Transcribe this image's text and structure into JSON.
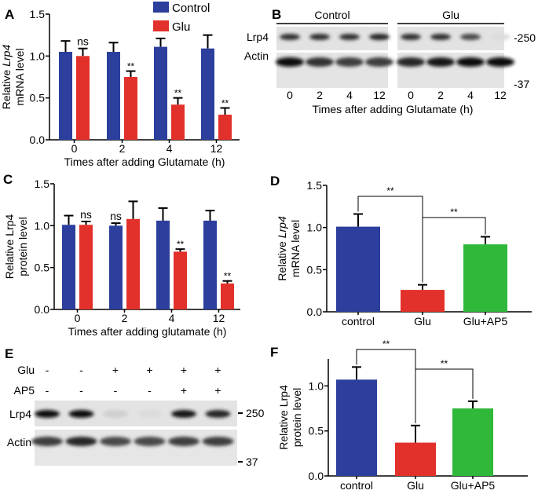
{
  "colors": {
    "control": "#2c3f9c",
    "glu": "#e2312a",
    "ap5": "#2fb83a"
  },
  "chart_data": [
    {
      "panel": "A",
      "type": "bar",
      "title": "",
      "ylabel_pre": "Relative ",
      "ylabel_italic": "Lrp4",
      "ylabel_line2": "mRNA level",
      "xlabel": "Times after adding Glutamate (h)",
      "categories": [
        "0",
        "2",
        "4",
        "12"
      ],
      "yticks": [
        "0.0",
        "0.5",
        "1.0",
        "1.5"
      ],
      "ylim": [
        0,
        1.5
      ],
      "legend": {
        "placement": "top",
        "entries": [
          "Control",
          "Glu"
        ]
      },
      "series": [
        {
          "name": "Control",
          "values": [
            1.05,
            1.05,
            1.11,
            1.09
          ],
          "errors": [
            0.13,
            0.11,
            0.1,
            0.16
          ]
        },
        {
          "name": "Glu",
          "values": [
            1.0,
            0.75,
            0.42,
            0.3
          ],
          "errors": [
            0.09,
            0.07,
            0.08,
            0.08
          ]
        }
      ],
      "annotations": [
        "ns",
        "**",
        "**",
        "**"
      ]
    },
    {
      "panel": "C",
      "type": "bar",
      "ylabel_line1": "Relative Lrp4",
      "ylabel_line2": "protein level",
      "xlabel": "Times after adding glutamate (h)",
      "categories": [
        "0",
        "2",
        "4",
        "12"
      ],
      "yticks": [
        "0.0",
        "0.5",
        "1.0",
        "1.5"
      ],
      "ylim": [
        0,
        1.5
      ],
      "series": [
        {
          "name": "Control",
          "values": [
            1.01,
            1.0,
            1.06,
            1.06
          ],
          "errors": [
            0.11,
            0.03,
            0.15,
            0.12
          ]
        },
        {
          "name": "Glu",
          "values": [
            1.01,
            1.08,
            0.69,
            0.31
          ],
          "errors": [
            0.04,
            0.21,
            0.03,
            0.03
          ]
        }
      ],
      "annotations": [
        "ns",
        "ns",
        "**",
        "**"
      ]
    },
    {
      "panel": "D",
      "type": "bar",
      "ylabel_pre": "Relative ",
      "ylabel_italic": "Lrp4",
      "ylabel_line2": "mRNA level",
      "categories": [
        "control",
        "Glu",
        "Glu+AP5"
      ],
      "yticks": [
        "0.0",
        "0.5",
        "1.0",
        "1.5"
      ],
      "ylim": [
        0,
        1.5
      ],
      "values": [
        1.01,
        0.26,
        0.8
      ],
      "errors": [
        0.15,
        0.06,
        0.09
      ],
      "significance": [
        "**",
        "**"
      ]
    },
    {
      "panel": "F",
      "type": "bar",
      "ylabel_line1": "Relative Lrp4",
      "ylabel_line2": "protein level",
      "categories": [
        "control",
        "Glu",
        "Glu+AP5"
      ],
      "yticks": [
        "0.0",
        "0.5",
        "1.0"
      ],
      "ylim": [
        0,
        1.3
      ],
      "values": [
        1.07,
        0.37,
        0.75
      ],
      "errors": [
        0.14,
        0.19,
        0.08
      ],
      "significance": [
        "**",
        "**"
      ]
    }
  ],
  "panel_labels": [
    "A",
    "B",
    "C",
    "D",
    "E",
    "F"
  ],
  "blot_b": {
    "groups": [
      "Control",
      "Glu"
    ],
    "rows": [
      "Lrp4",
      "Actin"
    ],
    "markers": [
      "-250",
      "-37"
    ],
    "lanes": [
      "0",
      "2",
      "4",
      "12",
      "0",
      "2",
      "4",
      "12"
    ],
    "xlabel": "Times after adding Glutamate (h)",
    "lrp4_intensity": [
      0.85,
      0.85,
      0.85,
      0.9,
      0.85,
      0.85,
      0.75,
      0.15
    ],
    "actin_intensity": [
      1.0,
      0.85,
      0.8,
      0.8,
      0.9,
      0.95,
      1.0,
      1.0
    ]
  },
  "blot_e": {
    "treatments": [
      {
        "label": "Glu",
        "signs": [
          "-",
          "-",
          "+",
          "+",
          "+",
          "+"
        ]
      },
      {
        "label": "AP5",
        "signs": [
          "-",
          "-",
          "-",
          "-",
          "+",
          "+"
        ]
      }
    ],
    "rows": [
      "Lrp4",
      "Actin"
    ],
    "markers": [
      "250",
      "37"
    ],
    "lrp4_intensity": [
      1.0,
      1.0,
      0.2,
      0.15,
      0.95,
      0.9
    ],
    "actin_intensity": [
      0.8,
      0.9,
      0.75,
      0.75,
      0.8,
      0.8
    ]
  }
}
